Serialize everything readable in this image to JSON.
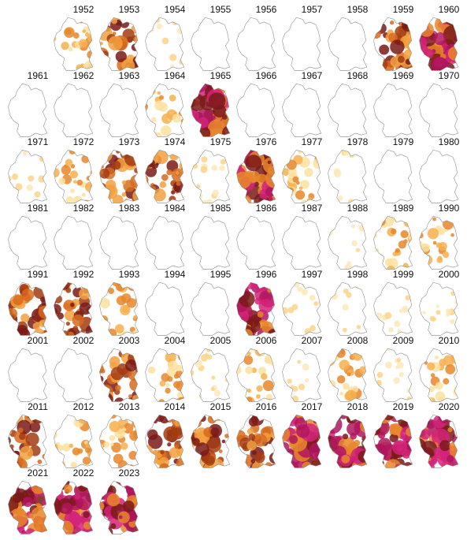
{
  "years": [
    "1952",
    "1953",
    "1954",
    "1955",
    "1956",
    "1957",
    "1958",
    "1959",
    "1960",
    "1961",
    "1962",
    "1963",
    "1964",
    "1965",
    "1966",
    "1967",
    "1968",
    "1969",
    "1970",
    "1971",
    "1972",
    "1973",
    "1974",
    "1975",
    "1976",
    "1977",
    "1978",
    "1979",
    "1980",
    "1981",
    "1982",
    "1983",
    "1984",
    "1985",
    "1986",
    "1987",
    "1988",
    "1989",
    "1990",
    "1991",
    "1992",
    "1993",
    "1994",
    "1995",
    "1996",
    "1997",
    "1998",
    "1999",
    "2000",
    "2001",
    "2002",
    "2003",
    "2004",
    "2005",
    "2006",
    "2007",
    "2008",
    "2009",
    "2010",
    "2011",
    "2012",
    "2013",
    "2014",
    "2015",
    "2016",
    "2017",
    "2018",
    "2019",
    "2020",
    "2021",
    "2022",
    "2023"
  ]
}
